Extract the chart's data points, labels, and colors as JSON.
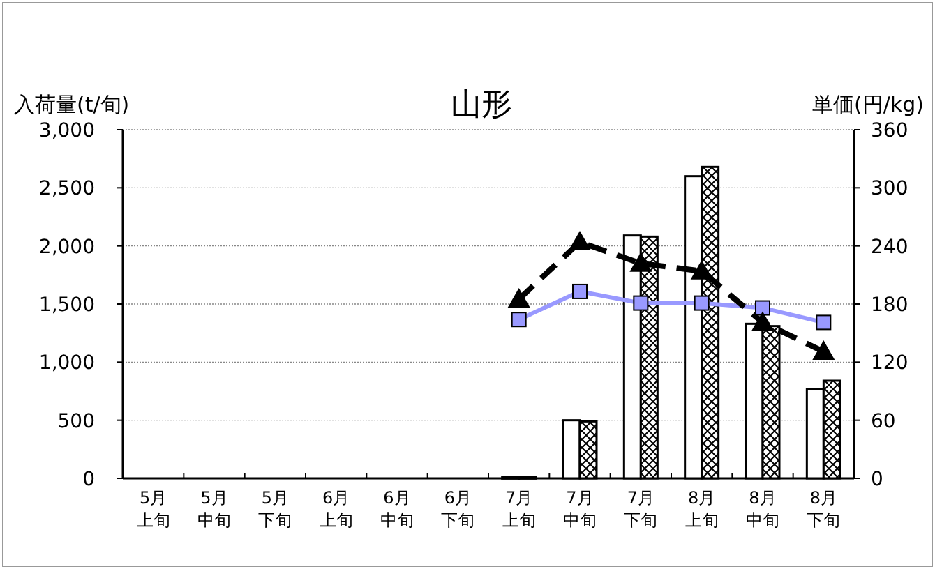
{
  "chart_data": {
    "type": "bar",
    "title": "山形",
    "ylabel": "入荷量(t/旬)",
    "y2label": "単価(円/kg)",
    "categories": [
      "5月上旬",
      "5月中旬",
      "5月下旬",
      "6月上旬",
      "6月中旬",
      "6月下旬",
      "7月上旬",
      "7月中旬",
      "7月下旬",
      "8月上旬",
      "8月中旬",
      "8月下旬"
    ],
    "series": [
      {
        "color": "#ffffff",
        "values": [
          null,
          null,
          null,
          null,
          null,
          null,
          10,
          500,
          2090,
          2600,
          1330,
          770
        ]
      },
      {
        "color": "#000000",
        "values": [
          null,
          null,
          null,
          null,
          null,
          null,
          10,
          490,
          2080,
          2680,
          1310,
          840
        ]
      },
      {
        "type": "line",
        "axis": "y2",
        "color": "#9999ff",
        "marker": "square",
        "line_style": "solid",
        "values": [
          null,
          null,
          null,
          null,
          null,
          null,
          164,
          193,
          181,
          181,
          176,
          161
        ]
      },
      {
        "type": "line",
        "axis": "y2",
        "color": "#000000",
        "marker": "triangle",
        "line_style": "dashed",
        "values": [
          null,
          null,
          null,
          null,
          null,
          null,
          185,
          244,
          222,
          214,
          161,
          131
        ]
      }
    ],
    "ylim": [
      0,
      3000
    ],
    "yticks": [
      {
        "value": 0,
        "label": "0"
      },
      {
        "value": 500,
        "label": "500"
      },
      {
        "value": 1000,
        "label": "1,000"
      },
      {
        "value": 1500,
        "label": "1,500"
      },
      {
        "value": 2000,
        "label": "2,000"
      },
      {
        "value": 2500,
        "label": "2,500"
      },
      {
        "value": 3000,
        "label": "3,000"
      }
    ],
    "y2lim": [
      0,
      360
    ],
    "y2ticks": [
      0,
      60,
      120,
      180,
      240,
      300,
      360
    ],
    "grid": "y"
  }
}
